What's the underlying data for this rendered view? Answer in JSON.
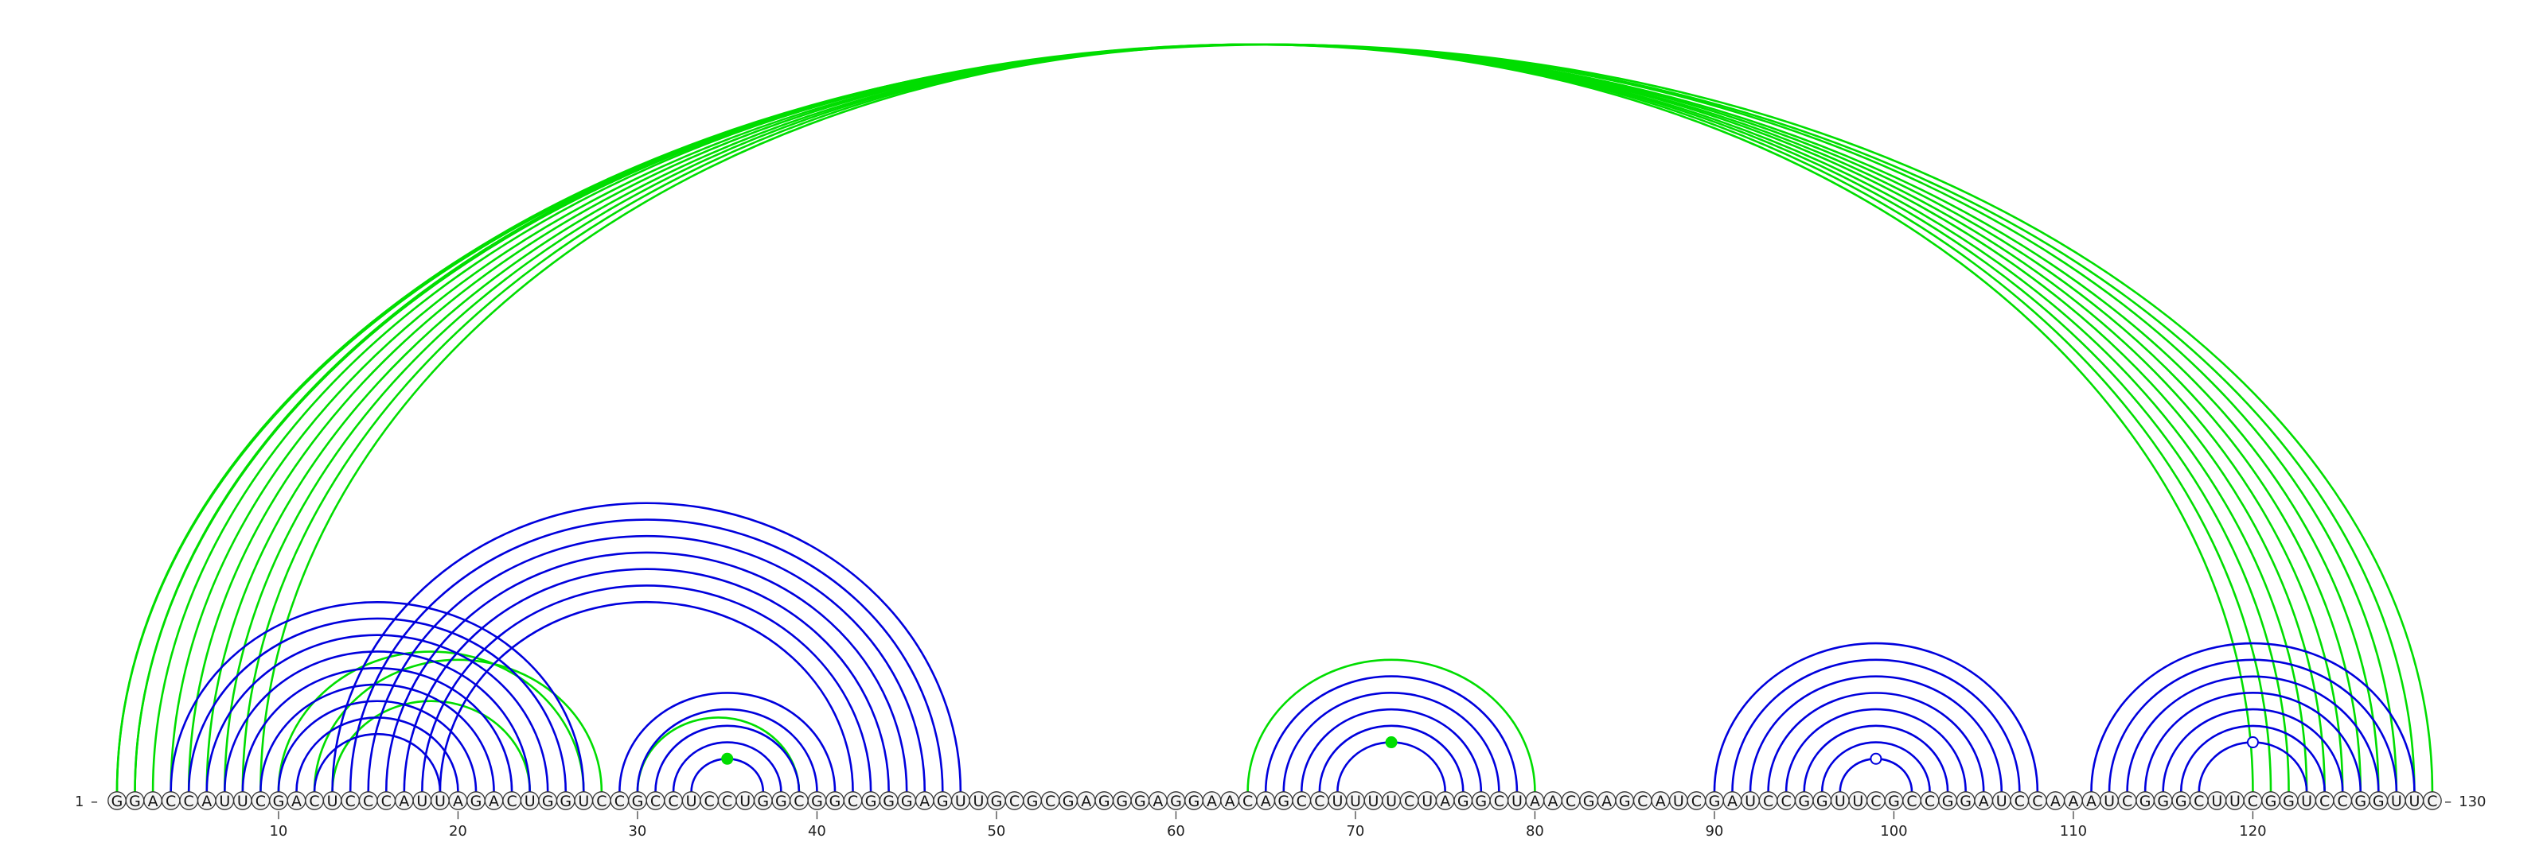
{
  "diagram": {
    "sequence": "GGACCAUUCGACUCCCAUUAGACUGGUCCGCCUCCUGGCGGCGGGAGUUGCGCGAGGGAGGAACAGCCUUUUCUAGGCUAACGAGCAUCGAUCCGGUUCGCCGGAUCCAAAUCGGGCUUCGGUCCGGUUC",
    "start_label": "1",
    "end_label": "130",
    "axis_ticks": [
      "10",
      "20",
      "30",
      "40",
      "50",
      "60",
      "70",
      "80",
      "90",
      "100",
      "110",
      "120"
    ],
    "colors": {
      "pairs_a": "#0000dd",
      "pairs_b": "#00dd00",
      "backbone": "#444444"
    },
    "pair_sets": [
      {
        "color": "#00dd00",
        "pairs": [
          [
            1,
            130
          ],
          [
            2,
            127
          ],
          [
            3,
            126
          ],
          [
            4,
            125
          ],
          [
            5,
            124
          ],
          [
            6,
            123
          ],
          [
            7,
            122
          ],
          [
            8,
            121
          ],
          [
            9,
            120
          ],
          [
            10,
            27
          ],
          [
            12,
            28
          ],
          [
            13,
            24
          ],
          [
            30,
            39
          ],
          [
            64,
            80
          ],
          [
            1,
            129
          ],
          [
            2,
            128
          ]
        ]
      },
      {
        "color": "#0000dd",
        "pairs": [
          [
            4,
            27
          ],
          [
            5,
            26
          ],
          [
            6,
            25
          ],
          [
            7,
            24
          ],
          [
            8,
            23
          ],
          [
            9,
            22
          ],
          [
            10,
            21
          ],
          [
            11,
            20
          ],
          [
            12,
            19
          ],
          [
            13,
            48
          ],
          [
            14,
            47
          ],
          [
            15,
            46
          ],
          [
            16,
            45
          ],
          [
            17,
            44
          ],
          [
            18,
            43
          ],
          [
            19,
            42
          ],
          [
            29,
            41
          ],
          [
            30,
            40
          ],
          [
            31,
            39
          ],
          [
            32,
            38
          ],
          [
            33,
            37
          ],
          [
            65,
            79
          ],
          [
            66,
            78
          ],
          [
            67,
            77
          ],
          [
            68,
            76
          ],
          [
            69,
            75
          ],
          [
            90,
            108
          ],
          [
            91,
            107
          ],
          [
            92,
            106
          ],
          [
            93,
            105
          ],
          [
            94,
            104
          ],
          [
            95,
            103
          ],
          [
            96,
            102
          ],
          [
            97,
            101
          ],
          [
            111,
            129
          ],
          [
            112,
            128
          ],
          [
            113,
            127
          ],
          [
            114,
            126
          ],
          [
            115,
            125
          ],
          [
            116,
            124
          ],
          [
            117,
            123
          ]
        ]
      }
    ],
    "markers": [
      {
        "pos": 35,
        "fill": "#00dd00",
        "stroke": "#00dd00"
      },
      {
        "pos": 72,
        "fill": "#00dd00",
        "stroke": "#00dd00"
      },
      {
        "pos": 99,
        "fill": "#ffffff",
        "stroke": "#0000dd"
      },
      {
        "pos": 120,
        "fill": "#ffffff",
        "stroke": "#0000dd"
      }
    ]
  }
}
